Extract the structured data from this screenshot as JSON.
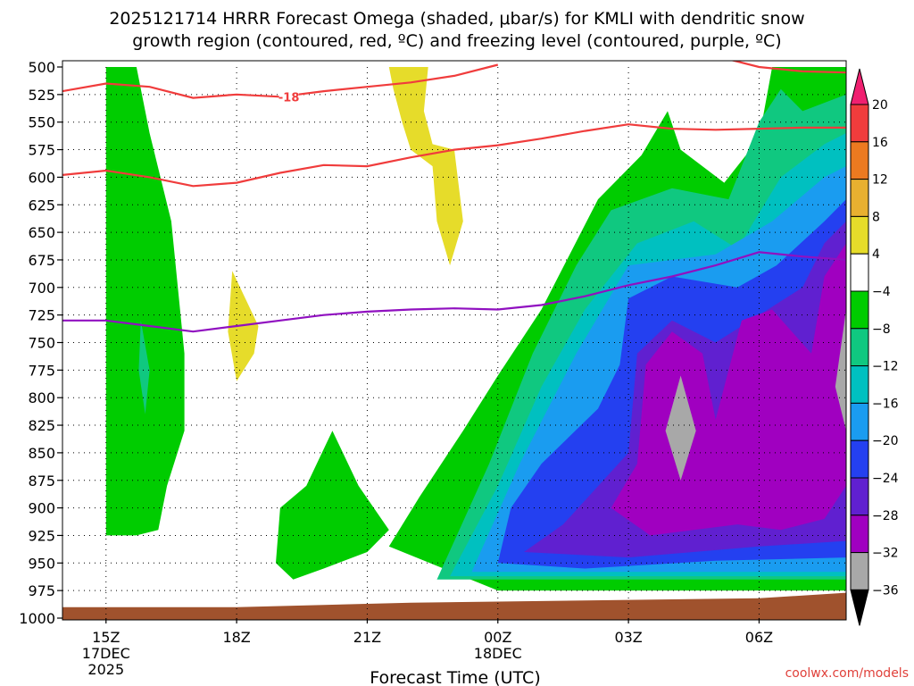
{
  "chart_data": {
    "type": "heatmap",
    "title_line1": "2025121714 HRRR Forecast Omega (shaded, μbar/s) for KMLI with dendritic snow",
    "title_line2": "growth region (contoured, red, ºC) and freezing level (contoured, purple, ºC)",
    "xlabel": "Forecast Time (UTC)",
    "credit": "coolwx.com/models",
    "x_range_hours": [
      -1,
      17
    ],
    "y_range_hpa": [
      500,
      1000
    ],
    "y_ticks": [
      500,
      525,
      550,
      575,
      600,
      625,
      650,
      675,
      700,
      725,
      750,
      775,
      800,
      825,
      850,
      875,
      900,
      925,
      950,
      975,
      1000
    ],
    "x_ticks": [
      {
        "t": 0,
        "label": "15Z",
        "sub1": "17DEC",
        "sub2": "2025"
      },
      {
        "t": 3,
        "label": "18Z",
        "sub1": "",
        "sub2": ""
      },
      {
        "t": 6,
        "label": "21Z",
        "sub1": "",
        "sub2": ""
      },
      {
        "t": 9,
        "label": "00Z",
        "sub1": "18DEC",
        "sub2": ""
      },
      {
        "t": 12,
        "label": "03Z",
        "sub1": "",
        "sub2": ""
      },
      {
        "t": 15,
        "label": "06Z",
        "sub1": "",
        "sub2": ""
      }
    ],
    "colorbar": {
      "levels": [
        20,
        16,
        12,
        8,
        4,
        -4,
        -8,
        -12,
        -16,
        -20,
        -24,
        -28,
        -32,
        -36
      ],
      "colors": [
        "#f02070",
        "#f03c3c",
        "#ec7a20",
        "#e8b030",
        "#e6dc2a",
        "#ffffff",
        "#00cc00",
        "#10c880",
        "#00c0c0",
        "#1a9cf0",
        "#2440f0",
        "#6020d0",
        "#a000c0",
        "#a8a8a8",
        "#000000"
      ]
    },
    "omega_regions": [
      {
        "name": "green-column-1516z",
        "color": "#00cc00",
        "points": [
          [
            0,
            500
          ],
          [
            0.7,
            500
          ],
          [
            1.0,
            560
          ],
          [
            1.5,
            640
          ],
          [
            1.8,
            760
          ],
          [
            1.8,
            830
          ],
          [
            1.4,
            880
          ],
          [
            1.2,
            920
          ],
          [
            0.7,
            925
          ],
          [
            0,
            925
          ]
        ]
      },
      {
        "name": "teal-patch-16z",
        "color": "#10c880",
        "points": [
          [
            0.8,
            730
          ],
          [
            1.0,
            775
          ],
          [
            0.9,
            815
          ],
          [
            0.75,
            775
          ]
        ]
      },
      {
        "name": "yellow-patch-18z",
        "color": "#e6dc2a",
        "points": [
          [
            2.9,
            685
          ],
          [
            3.5,
            735
          ],
          [
            3.4,
            760
          ],
          [
            3.0,
            785
          ],
          [
            2.8,
            740
          ]
        ]
      },
      {
        "name": "yellow-patch-2230z",
        "color": "#e6dc2a",
        "points": [
          [
            6.5,
            500
          ],
          [
            7.4,
            500
          ],
          [
            7.3,
            540
          ],
          [
            7.5,
            570
          ],
          [
            8.0,
            575
          ],
          [
            8.2,
            640
          ],
          [
            7.9,
            680
          ],
          [
            7.6,
            640
          ],
          [
            7.5,
            590
          ],
          [
            7.0,
            575
          ],
          [
            6.8,
            550
          ],
          [
            6.6,
            520
          ]
        ]
      },
      {
        "name": "green-blob-21z",
        "color": "#00cc00",
        "points": [
          [
            4.0,
            900
          ],
          [
            4.6,
            880
          ],
          [
            5.2,
            830
          ],
          [
            5.8,
            880
          ],
          [
            6.5,
            920
          ],
          [
            6.0,
            940
          ],
          [
            5.0,
            955
          ],
          [
            4.3,
            965
          ],
          [
            3.9,
            950
          ]
        ]
      },
      {
        "name": "green-main",
        "color": "#00cc00",
        "points": [
          [
            6.5,
            935
          ],
          [
            7.2,
            890
          ],
          [
            8.2,
            830
          ],
          [
            9.0,
            780
          ],
          [
            10.0,
            720
          ],
          [
            11.3,
            620
          ],
          [
            12.3,
            580
          ],
          [
            12.9,
            540
          ],
          [
            13.2,
            575
          ],
          [
            14.2,
            605
          ],
          [
            15.0,
            565
          ],
          [
            15.3,
            500
          ],
          [
            17,
            500
          ],
          [
            17,
            975
          ],
          [
            9,
            975
          ]
        ]
      },
      {
        "name": "teal-main",
        "color": "#10c880",
        "points": [
          [
            7.6,
            965
          ],
          [
            8.8,
            860
          ],
          [
            9.8,
            760
          ],
          [
            10.8,
            680
          ],
          [
            11.6,
            630
          ],
          [
            13.0,
            610
          ],
          [
            14.3,
            620
          ],
          [
            15.0,
            550
          ],
          [
            15.5,
            520
          ],
          [
            16.0,
            540
          ],
          [
            17,
            525
          ],
          [
            17,
            965
          ]
        ]
      },
      {
        "name": "cyan-main",
        "color": "#00c0c0",
        "points": [
          [
            7.9,
            962
          ],
          [
            9.0,
            880
          ],
          [
            10.0,
            790
          ],
          [
            11.0,
            720
          ],
          [
            12.2,
            660
          ],
          [
            13.5,
            640
          ],
          [
            14.5,
            665
          ],
          [
            15.5,
            600
          ],
          [
            16.5,
            570
          ],
          [
            17,
            560
          ],
          [
            17,
            962
          ]
        ]
      },
      {
        "name": "blue-main",
        "color": "#1a9cf0",
        "points": [
          [
            8.4,
            958
          ],
          [
            9.5,
            860
          ],
          [
            10.8,
            760
          ],
          [
            12.0,
            680
          ],
          [
            14.0,
            670
          ],
          [
            15.3,
            640
          ],
          [
            16.5,
            600
          ],
          [
            17,
            590
          ],
          [
            17,
            958
          ]
        ]
      },
      {
        "name": "dark-blue-main",
        "color": "#2440f0",
        "points": [
          [
            9.0,
            950
          ],
          [
            9.3,
            900
          ],
          [
            10.0,
            860
          ],
          [
            11.3,
            810
          ],
          [
            11.8,
            770
          ],
          [
            12.0,
            710
          ],
          [
            13.0,
            690
          ],
          [
            14.5,
            700
          ],
          [
            15.4,
            680
          ],
          [
            16.5,
            640
          ],
          [
            17,
            620
          ],
          [
            17,
            945
          ],
          [
            14,
            948
          ],
          [
            11,
            955
          ]
        ]
      },
      {
        "name": "violet-main",
        "color": "#6020d0",
        "points": [
          [
            9.6,
            940
          ],
          [
            10.5,
            915
          ],
          [
            12.0,
            850
          ],
          [
            12.2,
            760
          ],
          [
            13.0,
            730
          ],
          [
            14.0,
            750
          ],
          [
            15.0,
            725
          ],
          [
            16.0,
            700
          ],
          [
            16.5,
            660
          ],
          [
            17,
            640
          ],
          [
            17,
            930
          ],
          [
            15,
            935
          ],
          [
            12,
            945
          ]
        ]
      },
      {
        "name": "purple-main",
        "color": "#a000c0",
        "points": [
          [
            11.6,
            900
          ],
          [
            12.2,
            860
          ],
          [
            12.4,
            770
          ],
          [
            13.0,
            740
          ],
          [
            13.7,
            760
          ],
          [
            14.0,
            820
          ],
          [
            14.6,
            730
          ],
          [
            15.3,
            720
          ],
          [
            16.2,
            760
          ],
          [
            16.5,
            690
          ],
          [
            17,
            660
          ],
          [
            17,
            880
          ],
          [
            16.5,
            910
          ],
          [
            15.5,
            920
          ],
          [
            14.5,
            915
          ],
          [
            13.5,
            920
          ],
          [
            12.5,
            925
          ]
        ]
      },
      {
        "name": "gray-core-0315z",
        "color": "#a8a8a8",
        "points": [
          [
            13.2,
            780
          ],
          [
            13.55,
            830
          ],
          [
            13.2,
            875
          ],
          [
            12.85,
            830
          ]
        ]
      },
      {
        "name": "gray-edge-08z",
        "color": "#a8a8a8",
        "points": [
          [
            17,
            720
          ],
          [
            17,
            830
          ],
          [
            16.75,
            790
          ]
        ]
      }
    ],
    "dendritic_contours": [
      {
        "name": "dgz-line-upper",
        "points": [
          [
            -1,
            522
          ],
          [
            0,
            515
          ],
          [
            1,
            518
          ],
          [
            2,
            528
          ],
          [
            3,
            525
          ],
          [
            4,
            527
          ],
          [
            5,
            522
          ],
          [
            6,
            518
          ],
          [
            7,
            514
          ],
          [
            8,
            508
          ],
          [
            9,
            498
          ]
        ],
        "label": "-18",
        "label_at": [
          4.2,
          527
        ]
      },
      {
        "name": "dgz-line-upper-right",
        "points": [
          [
            14.0,
            490
          ],
          [
            15,
            500
          ],
          [
            16,
            504
          ],
          [
            17,
            505
          ]
        ]
      },
      {
        "name": "dgz-line-lower",
        "points": [
          [
            -1,
            598
          ],
          [
            0,
            594
          ],
          [
            1,
            600
          ],
          [
            2,
            608
          ],
          [
            3,
            605
          ],
          [
            4,
            596
          ],
          [
            5,
            589
          ],
          [
            6,
            590
          ],
          [
            7,
            582
          ],
          [
            8,
            575
          ],
          [
            9,
            571
          ],
          [
            10,
            565
          ],
          [
            11,
            558
          ],
          [
            12,
            552
          ],
          [
            13,
            556
          ],
          [
            14,
            557
          ],
          [
            15,
            556
          ],
          [
            16,
            555
          ],
          [
            17,
            555
          ]
        ]
      }
    ],
    "freezing_level": {
      "name": "freezing-level-line",
      "points": [
        [
          -1,
          730
        ],
        [
          0,
          730
        ],
        [
          1,
          735
        ],
        [
          2,
          740
        ],
        [
          3,
          735
        ],
        [
          4,
          730
        ],
        [
          5,
          725
        ],
        [
          6,
          722
        ],
        [
          7,
          720
        ],
        [
          8,
          719
        ],
        [
          9,
          720
        ],
        [
          10,
          716
        ],
        [
          11,
          708
        ],
        [
          12,
          698
        ],
        [
          13,
          690
        ],
        [
          14,
          680
        ],
        [
          15,
          668
        ],
        [
          16,
          672
        ],
        [
          17,
          675
        ]
      ]
    },
    "terrain": {
      "name": "terrain-surface",
      "color": "#a0522d",
      "points": [
        [
          -1,
          990
        ],
        [
          3,
          990
        ],
        [
          5,
          988
        ],
        [
          7,
          986
        ],
        [
          9,
          985
        ],
        [
          11,
          984
        ],
        [
          13,
          983
        ],
        [
          15,
          982
        ],
        [
          17,
          977
        ]
      ]
    }
  }
}
